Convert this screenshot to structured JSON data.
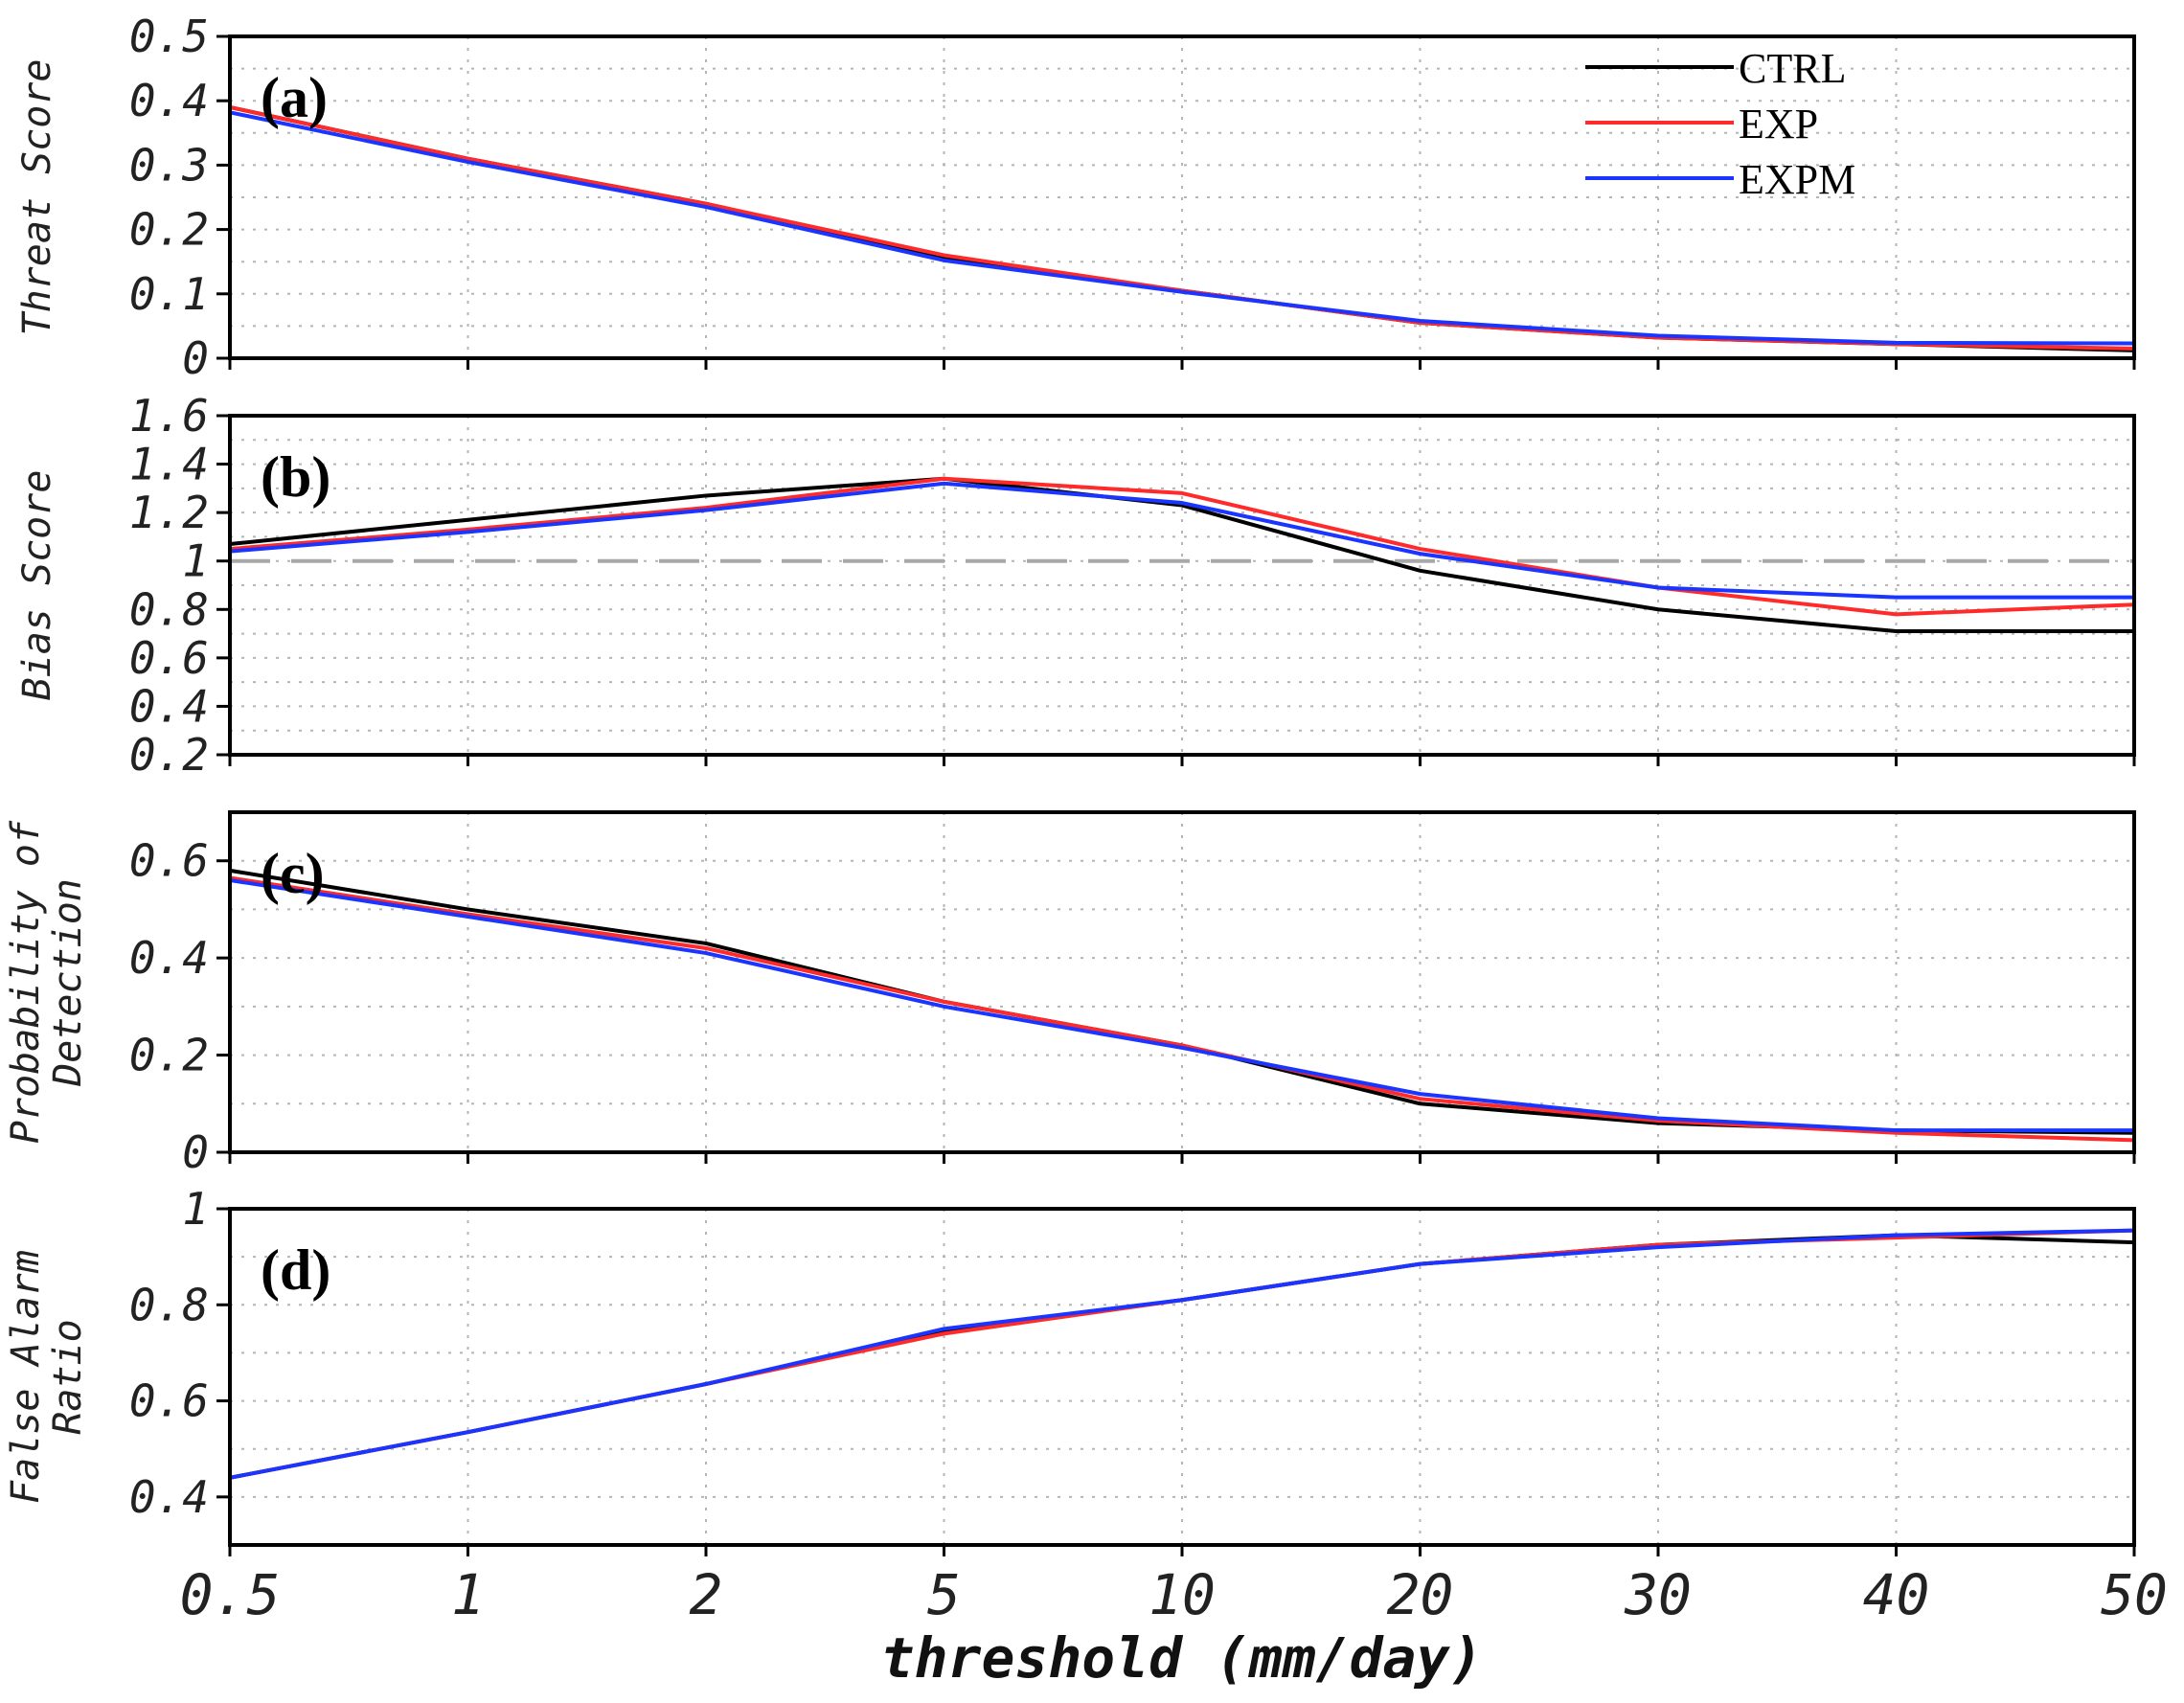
{
  "chart_data": {
    "type": "line",
    "xlabel": "threshold (mm/day)",
    "x_categories": [
      "0.5",
      "1",
      "2",
      "5",
      "10",
      "20",
      "30",
      "40",
      "50"
    ],
    "legend": [
      {
        "name": "CTRL",
        "color": "#000000"
      },
      {
        "name": "EXP",
        "color": "#ff2a2a"
      },
      {
        "name": "EXPM",
        "color": "#1a35ff"
      }
    ],
    "panels": [
      {
        "tag": "(a)",
        "ylabel": [
          "Threat Score"
        ],
        "ylim": [
          0,
          0.5
        ],
        "yticks": [
          "0",
          "0.1",
          "0.2",
          "0.3",
          "0.4",
          "0.5"
        ],
        "series": [
          {
            "name": "CTRL",
            "color": "#000000",
            "values": [
              0.39,
              0.31,
              0.24,
              0.155,
              0.105,
              0.055,
              0.032,
              0.022,
              0.012
            ]
          },
          {
            "name": "EXP",
            "color": "#ff2a2a",
            "values": [
              0.39,
              0.31,
              0.24,
              0.16,
              0.105,
              0.055,
              0.032,
              0.022,
              0.015
            ]
          },
          {
            "name": "EXPM",
            "color": "#1a35ff",
            "values": [
              0.382,
              0.305,
              0.235,
              0.152,
              0.103,
              0.058,
              0.035,
              0.024,
              0.023
            ]
          }
        ]
      },
      {
        "tag": "(b)",
        "ylabel": [
          "Bias Score"
        ],
        "ylim": [
          0.2,
          1.6
        ],
        "yticks": [
          "0.2",
          "0.4",
          "0.6",
          "0.8",
          "1",
          "1.2",
          "1.4",
          "1.6"
        ],
        "reference_line": 1,
        "series": [
          {
            "name": "CTRL",
            "color": "#000000",
            "values": [
              1.07,
              1.17,
              1.27,
              1.34,
              1.23,
              0.96,
              0.8,
              0.71,
              0.71
            ]
          },
          {
            "name": "EXP",
            "color": "#ff2a2a",
            "values": [
              1.05,
              1.13,
              1.22,
              1.34,
              1.28,
              1.05,
              0.89,
              0.78,
              0.82
            ]
          },
          {
            "name": "EXPM",
            "color": "#1a35ff",
            "values": [
              1.04,
              1.12,
              1.21,
              1.32,
              1.24,
              1.03,
              0.89,
              0.85,
              0.85
            ]
          }
        ]
      },
      {
        "tag": "(c)",
        "ylabel": [
          "Probability of",
          "Detection"
        ],
        "ylim": [
          0,
          0.7
        ],
        "yticks": [
          "0",
          "0.2",
          "0.4",
          "0.6"
        ],
        "series": [
          {
            "name": "CTRL",
            "color": "#000000",
            "values": [
              0.58,
              0.5,
              0.43,
              0.31,
              0.22,
              0.1,
              0.06,
              0.045,
              0.04
            ]
          },
          {
            "name": "EXP",
            "color": "#ff2a2a",
            "values": [
              0.565,
              0.49,
              0.42,
              0.31,
              0.22,
              0.11,
              0.065,
              0.04,
              0.025
            ]
          },
          {
            "name": "EXPM",
            "color": "#1a35ff",
            "values": [
              0.56,
              0.485,
              0.41,
              0.3,
              0.215,
              0.12,
              0.07,
              0.045,
              0.045
            ]
          }
        ]
      },
      {
        "tag": "(d)",
        "ylabel": [
          "False Alarm",
          "Ratio"
        ],
        "ylim": [
          0.3,
          1.0
        ],
        "yticks": [
          "0.4",
          "0.6",
          "0.8",
          "1"
        ],
        "series": [
          {
            "name": "CTRL",
            "color": "#000000",
            "values": [
              0.44,
              0.535,
              0.635,
              0.745,
              0.81,
              0.885,
              0.925,
              0.945,
              0.93
            ]
          },
          {
            "name": "EXP",
            "color": "#ff2a2a",
            "values": [
              0.44,
              0.535,
              0.635,
              0.74,
              0.81,
              0.885,
              0.925,
              0.94,
              0.955
            ]
          },
          {
            "name": "EXPM",
            "color": "#1a35ff",
            "values": [
              0.44,
              0.535,
              0.635,
              0.75,
              0.81,
              0.885,
              0.92,
              0.945,
              0.955
            ]
          }
        ]
      }
    ]
  }
}
